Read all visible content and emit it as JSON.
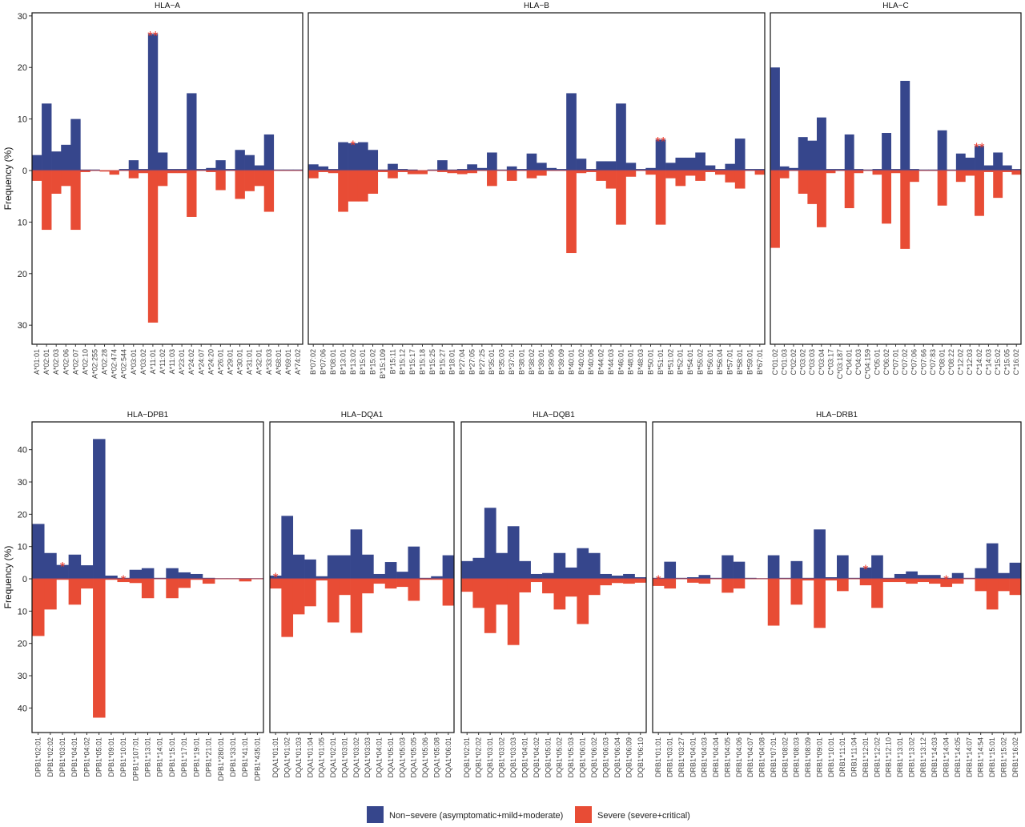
{
  "legend": [
    {
      "name": "Non−severe (asymptomatic+mild+moderate)",
      "color": "#36468c"
    },
    {
      "name": "Severe (severe+critical)",
      "color": "#e84c35"
    }
  ],
  "chart_data": [
    {
      "type": "bar",
      "title": "HLA−A",
      "ylabel": "Frequency (%)",
      "categories": [
        "A*01:01",
        "A*02:01",
        "A*02:03",
        "A*02:06",
        "A*02:07",
        "A*02:10",
        "A*02:255",
        "A*02:28",
        "A*02:474",
        "A*02:544",
        "A*03:01",
        "A*03:02",
        "A*11:01",
        "A*11:02",
        "A*11:03",
        "A*23:01",
        "A*24:02",
        "A*24:07",
        "A*24:20",
        "A*26:01",
        "A*29:01",
        "A*30:01",
        "A*31:01",
        "A*32:01",
        "A*33:03",
        "A*68:01",
        "A*69:01",
        "A*74:02"
      ],
      "series": [
        {
          "values": [
            3,
            13,
            3.7,
            5,
            10,
            0.2,
            0.2,
            0,
            0,
            0.3,
            2,
            0.3,
            26.5,
            3.5,
            0.3,
            0.3,
            15,
            0.3,
            0.5,
            2,
            0.3,
            4,
            3,
            1,
            7,
            0.2,
            0.2,
            0.2
          ]
        },
        {
          "values": [
            -2,
            -11.5,
            -4.5,
            -3,
            -11.5,
            -0.3,
            0,
            -0.2,
            -0.8,
            0,
            -1.5,
            -0.5,
            -29.5,
            -3,
            -0.5,
            -0.5,
            -9,
            0,
            -0.3,
            -3.8,
            0,
            -5.5,
            -4,
            -3,
            -8,
            0,
            0,
            0
          ]
        }
      ],
      "ylim": [
        -33.7,
        30.6
      ],
      "yticks": [
        30,
        20,
        10,
        0,
        {
          "value": -10,
          "label": "10"
        },
        {
          "value": -20,
          "label": "20"
        },
        {
          "value": -30,
          "label": "30"
        }
      ],
      "annotations": [
        {
          "text": "**",
          "category": "A*11:01"
        }
      ]
    },
    {
      "type": "bar",
      "title": "HLA−B",
      "categories": [
        "B*07:02",
        "B*07:06",
        "B*08:01",
        "B*13:01",
        "B*13:02",
        "B*15:01",
        "B*15:02",
        "B*15:109",
        "B*15:11",
        "B*15:12",
        "B*15:17",
        "B*15:18",
        "B*15:25",
        "B*15:27",
        "B*18:01",
        "B*27:04",
        "B*27:05",
        "B*27:25",
        "B*35:01",
        "B*35:03",
        "B*37:01",
        "B*38:01",
        "B*38:02",
        "B*39:01",
        "B*39:05",
        "B*39:09",
        "B*40:01",
        "B*40:02",
        "B*40:06",
        "B*44:02",
        "B*44:03",
        "B*46:01",
        "B*48:01",
        "B*48:03",
        "B*50:01",
        "B*51:01",
        "B*51:02",
        "B*52:01",
        "B*54:01",
        "B*55:02",
        "B*56:01",
        "B*56:04",
        "B*57:01",
        "B*58:01",
        "B*59:01",
        "B*67:01"
      ],
      "series": [
        {
          "values": [
            1.2,
            0.8,
            0.3,
            5.5,
            5.3,
            5.5,
            4,
            0.2,
            1.3,
            0.3,
            0.2,
            0,
            0.2,
            2,
            0.2,
            0.3,
            1.2,
            0.5,
            3.5,
            0.2,
            0.8,
            0.3,
            3.3,
            1.5,
            0.5,
            0.3,
            15,
            2.3,
            0.3,
            1.8,
            1.8,
            13,
            1.5,
            0.3,
            0.5,
            6,
            1.5,
            2.5,
            2.5,
            3.5,
            1,
            0.3,
            1.3,
            6.2,
            0.3,
            0.3
          ]
        },
        {
          "values": [
            -1.5,
            -0.3,
            -0.5,
            -8,
            -6,
            -6,
            -4.5,
            -0.3,
            -1.5,
            -0.3,
            -0.7,
            -0.7,
            0,
            -0.3,
            -0.5,
            -0.7,
            -0.5,
            0,
            -3,
            0,
            -2,
            0,
            -1.5,
            -1,
            0,
            0,
            -16,
            -0.5,
            -0.3,
            -2,
            -3.5,
            -10.5,
            -1.2,
            0,
            -0.8,
            -10.5,
            -1.5,
            -3,
            -1,
            -2,
            -0.3,
            -0.8,
            -2.3,
            -3.5,
            0,
            -0.8
          ]
        }
      ],
      "ylim": [
        -33.7,
        30.6
      ],
      "annotations": [
        {
          "text": "*",
          "category": "B*13:02"
        },
        {
          "text": "**",
          "category": "B*51:01"
        }
      ]
    },
    {
      "type": "bar",
      "title": "HLA−C",
      "categories": [
        "C*01:02",
        "C*01:03",
        "C*02:02",
        "C*03:02",
        "C*03:03",
        "C*03:04",
        "C*03:17",
        "C*03:187",
        "C*04:01",
        "C*04:03",
        "C*04:159",
        "C*05:01",
        "C*06:02",
        "C*07:01",
        "C*07:02",
        "C*07:06",
        "C*07:66",
        "C*07:83",
        "C*08:01",
        "C*08:22",
        "C*12:02",
        "C*12:03",
        "C*14:02",
        "C*14:03",
        "C*15:02",
        "C*15:05",
        "C*16:02"
      ],
      "series": [
        {
          "values": [
            20,
            0.8,
            0.5,
            6.5,
            5.8,
            10.3,
            0.3,
            0.3,
            7,
            0.3,
            0.2,
            0.3,
            7.3,
            0.3,
            17.4,
            0.3,
            0.2,
            0.2,
            7.8,
            0.2,
            3.3,
            2.5,
            4.8,
            1,
            3.5,
            1,
            0.3
          ]
        },
        {
          "values": [
            -15,
            -1.5,
            0,
            -4.5,
            -6.5,
            -11,
            -0.5,
            0,
            -7.3,
            -0.5,
            0,
            -0.8,
            -10.3,
            -0.5,
            -15.2,
            -2.2,
            0,
            0,
            -6.8,
            0,
            -2.2,
            -1,
            -8.8,
            -0.3,
            -5.3,
            -0.3,
            -0.8
          ]
        }
      ],
      "ylim": [
        -33.7,
        30.6
      ],
      "annotations": [
        {
          "text": "**",
          "category": "C*14:02"
        }
      ]
    },
    {
      "type": "bar",
      "title": "HLA−DPB1",
      "ylabel": "Frequency (%)",
      "categories": [
        "DPB1*02:01",
        "DPB1*02:02",
        "DPB1*03:01",
        "DPB1*04:01",
        "DPB1*04:02",
        "DPB1*05:01",
        "DPB1*09:01",
        "DPB1*10:01",
        "DPB1*107:01",
        "DPB1*13:01",
        "DPB1*14:01",
        "DPB1*15:01",
        "DPB1*17:01",
        "DPB1*19:01",
        "DPB1*21:01",
        "DPB1*280:01",
        "DPB1*33:01",
        "DPB1*41:01",
        "DPB1*435:01"
      ],
      "series": [
        {
          "values": [
            17,
            8,
            4.3,
            7.5,
            4.2,
            43.3,
            1,
            0.3,
            2.8,
            3.3,
            0.3,
            3.3,
            2,
            1.5,
            0.3,
            0.2,
            0.2,
            0.2,
            0.2
          ]
        },
        {
          "values": [
            -17.7,
            -9.5,
            -0.3,
            -8,
            -3,
            -43,
            -0.3,
            -1,
            -1.3,
            -6,
            0,
            -6,
            -2.8,
            -0.3,
            -1.5,
            0,
            0,
            -0.8,
            0
          ]
        }
      ],
      "ylim": [
        -47.6,
        48.6
      ],
      "yticks": [
        40,
        30,
        20,
        10,
        0,
        {
          "value": -10,
          "label": "10"
        },
        {
          "value": -20,
          "label": "20"
        },
        {
          "value": -30,
          "label": "30"
        },
        {
          "value": -40,
          "label": "40"
        }
      ],
      "annotations": [
        {
          "text": "*",
          "category": "DPB1*03:01"
        },
        {
          "text": "*",
          "category": "DPB1*10:01"
        }
      ]
    },
    {
      "type": "bar",
      "title": "HLA−DQA1",
      "categories": [
        "DQA1*01:01",
        "DQA1*01:02",
        "DQA1*01:03",
        "DQA1*01:04",
        "DQA1*01:05",
        "DQA1*02:01",
        "DQA1*03:01",
        "DQA1*03:02",
        "DQA1*03:03",
        "DQA1*04:01",
        "DQA1*05:01",
        "DQA1*05:03",
        "DQA1*05:05",
        "DQA1*05:06",
        "DQA1*05:08",
        "DQA1*06:01"
      ],
      "series": [
        {
          "values": [
            1,
            19.5,
            7.5,
            6,
            0.8,
            7.3,
            7.3,
            15.3,
            7.5,
            1.5,
            5.2,
            2.2,
            10,
            0.3,
            0.8,
            7.3
          ]
        },
        {
          "values": [
            -3,
            -18,
            -11,
            -8.5,
            -0.5,
            -13.5,
            -5,
            -16.7,
            -4.5,
            -1.5,
            -3,
            -2.5,
            -6.8,
            -0.3,
            -0.3,
            -8.3
          ]
        }
      ],
      "ylim": [
        -47.6,
        48.6
      ],
      "annotations": [
        {
          "text": "*",
          "category": "DQA1*01:01"
        }
      ]
    },
    {
      "type": "bar",
      "title": "HLA−DQB1",
      "categories": [
        "DQB1*02:01",
        "DQB1*02:02",
        "DQB1*03:01",
        "DQB1*03:02",
        "DQB1*03:03",
        "DQB1*04:01",
        "DQB1*04:02",
        "DQB1*05:01",
        "DQB1*05:02",
        "DQB1*05:03",
        "DQB1*06:01",
        "DQB1*06:02",
        "DQB1*06:03",
        "DQB1*06:04",
        "DQB1*06:09",
        "DQB1*06:10"
      ],
      "series": [
        {
          "values": [
            5.5,
            6.5,
            22,
            8,
            16.3,
            5.5,
            1.5,
            1.8,
            8,
            3.5,
            9.5,
            8,
            1.5,
            1,
            1.5,
            0.5
          ]
        },
        {
          "values": [
            -4,
            -9,
            -16.8,
            -8,
            -20.5,
            -4.2,
            -1,
            -4.5,
            -9.5,
            -5.5,
            -14,
            -5,
            -2,
            -1.3,
            -1.5,
            -1.2
          ]
        }
      ],
      "ylim": [
        -47.6,
        48.6
      ]
    },
    {
      "type": "bar",
      "title": "HLA−DRB1",
      "categories": [
        "DRB1*01:01",
        "DRB1*03:01",
        "DRB1*03:27",
        "DRB1*04:01",
        "DRB1*04:03",
        "DRB1*04:04",
        "DRB1*04:05",
        "DRB1*04:06",
        "DRB1*04:07",
        "DRB1*04:08",
        "DRB1*07:01",
        "DRB1*08:02",
        "DRB1*08:03",
        "DRB1*08:09",
        "DRB1*09:01",
        "DRB1*10:01",
        "DRB1*11:01",
        "DRB1*11:04",
        "DRB1*12:01",
        "DRB1*12:02",
        "DRB1*12:10",
        "DRB1*13:01",
        "DRB1*13:02",
        "DRB1*13:12",
        "DRB1*14:03",
        "DRB1*14:04",
        "DRB1*14:05",
        "DRB1*14:07",
        "DRB1*14:54",
        "DRB1*15:01",
        "DRB1*15:02",
        "DRB1*16:02"
      ],
      "series": [
        {
          "values": [
            0.3,
            5.3,
            0.3,
            0.5,
            1.2,
            0.3,
            7.3,
            5.3,
            0.3,
            0.2,
            7.3,
            0.3,
            5.5,
            0.3,
            15.3,
            0.5,
            7.3,
            0.3,
            3.5,
            7.3,
            0.3,
            1.5,
            2.3,
            1.2,
            1.2,
            0.3,
            1.8,
            0.3,
            3.3,
            11,
            1.8,
            5
          ]
        },
        {
          "values": [
            -2.2,
            -3,
            0,
            -1.2,
            -1.5,
            0,
            -4.3,
            -3,
            0,
            0,
            -14.5,
            0,
            -8,
            -0.5,
            -15.2,
            -0.5,
            -3.8,
            0,
            -2,
            -9,
            -1,
            -1,
            -1.5,
            -1,
            -1.5,
            -2.5,
            -1.5,
            0,
            -3.8,
            -9.5,
            -3.8,
            -5
          ]
        }
      ],
      "ylim": [
        -47.6,
        48.6
      ],
      "annotations": [
        {
          "text": "*",
          "category": "DRB1*01:01"
        },
        {
          "text": "*",
          "category": "DRB1*12:01"
        },
        {
          "text": "*",
          "category": "DRB1*14:04"
        }
      ]
    }
  ]
}
